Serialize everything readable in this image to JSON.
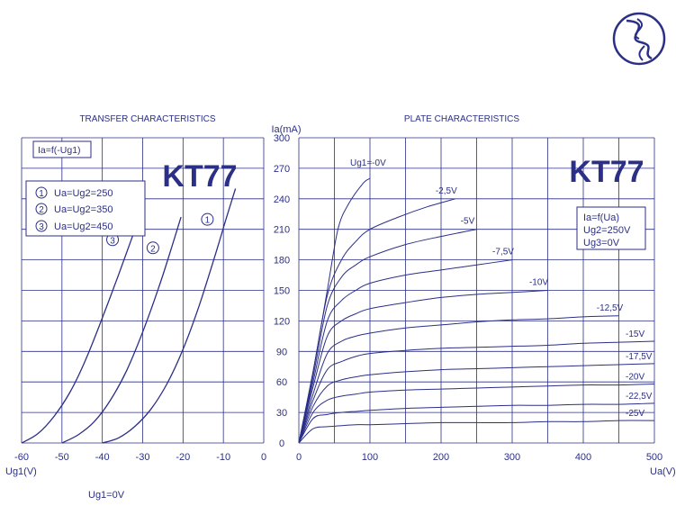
{
  "colors": {
    "ink": "#2b2f86",
    "grid": "#2b2f86",
    "bg": "#ffffff"
  },
  "logo": {
    "icon": "sine-wave-circle-logo"
  },
  "chart_data": [
    {
      "type": "line",
      "title": "TRANSFER  CHARACTERISTICS",
      "xlabel": "Ug1(V)",
      "bottom_note": "Ug1=0V",
      "xlim": [
        -60,
        0
      ],
      "ylim": [
        0,
        300
      ],
      "xticks": [
        "-60",
        "-50",
        "-40",
        "-30",
        "-20",
        "-10",
        "0"
      ],
      "grid": true,
      "heading": "KT77",
      "formula": "Ia=f(-Ug1)",
      "legend": [
        {
          "num": "1",
          "text": "Ua=Ug2=250"
        },
        {
          "num": "2",
          "text": "Ua=Ug2=350"
        },
        {
          "num": "3",
          "text": "Ua=Ug2=450"
        }
      ],
      "series": [
        {
          "marker": "1",
          "x": [
            -40,
            -36,
            -32,
            -28,
            -24,
            -20,
            -16,
            -12,
            -9.5,
            -7
          ],
          "y": [
            0,
            5,
            16,
            33,
            58,
            92,
            135,
            185,
            218,
            250
          ]
        },
        {
          "marker": "2",
          "x": [
            -50,
            -46,
            -42,
            -38,
            -34,
            -30,
            -26,
            -23,
            -20.5
          ],
          "y": [
            0,
            8,
            21,
            42,
            71,
            109,
            153,
            190,
            222
          ]
        },
        {
          "marker": "3",
          "x": [
            -60,
            -56,
            -52,
            -48,
            -44,
            -40,
            -36,
            -33,
            -30.5
          ],
          "y": [
            0,
            9,
            26,
            50,
            83,
            123,
            165,
            198,
            225
          ]
        }
      ]
    },
    {
      "type": "line",
      "title": "PLATE CHARACTERISTICS",
      "xlabel": "Ua(V)",
      "ylabel": "Ia(mA)",
      "xlim": [
        0,
        500
      ],
      "ylim": [
        0,
        300
      ],
      "xticks": [
        "0",
        "100",
        "200",
        "300",
        "400",
        "500"
      ],
      "yticks": [
        "0",
        "30",
        "60",
        "90",
        "120",
        "150",
        "180",
        "210",
        "240",
        "270",
        "300"
      ],
      "grid": true,
      "heading": "KT77",
      "conditions": [
        "Ia=f(Ua)",
        "Ug2=250V",
        "Ug3=0V"
      ],
      "series": [
        {
          "name": "Ug1=-0V",
          "x": [
            0,
            20,
            40,
            55,
            70,
            90,
            100
          ],
          "y": [
            0,
            70,
            150,
            210,
            235,
            255,
            260
          ]
        },
        {
          "name": "-2,5V",
          "x": [
            0,
            20,
            40,
            60,
            80,
            100,
            140,
            180,
            220
          ],
          "y": [
            0,
            70,
            145,
            180,
            198,
            210,
            222,
            232,
            240
          ]
        },
        {
          "name": "-5V",
          "x": [
            0,
            20,
            40,
            60,
            80,
            100,
            150,
            200,
            250
          ],
          "y": [
            0,
            65,
            135,
            163,
            175,
            183,
            195,
            203,
            210
          ]
        },
        {
          "name": "-7,5V",
          "x": [
            0,
            20,
            40,
            60,
            80,
            100,
            150,
            200,
            250,
            300
          ],
          "y": [
            0,
            60,
            120,
            140,
            150,
            157,
            165,
            170,
            175,
            180
          ]
        },
        {
          "name": "-10V",
          "x": [
            0,
            20,
            40,
            60,
            80,
            100,
            150,
            200,
            250,
            300,
            350
          ],
          "y": [
            0,
            55,
            105,
            120,
            127,
            132,
            138,
            143,
            146,
            148,
            150
          ]
        },
        {
          "name": "-12,5V",
          "x": [
            0,
            20,
            40,
            60,
            80,
            100,
            150,
            200,
            250,
            300,
            350,
            400,
            450
          ],
          "y": [
            0,
            48,
            88,
            100,
            105,
            108,
            113,
            116,
            119,
            121,
            122,
            124,
            125
          ]
        },
        {
          "name": "-15V",
          "x": [
            0,
            20,
            40,
            60,
            80,
            100,
            150,
            200,
            250,
            300,
            350,
            400,
            450,
            500
          ],
          "y": [
            0,
            42,
            72,
            80,
            85,
            88,
            91,
            93,
            94,
            95,
            96,
            98,
            99,
            100
          ]
        },
        {
          "name": "-17,5V",
          "x": [
            0,
            20,
            40,
            60,
            80,
            100,
            150,
            200,
            250,
            300,
            350,
            400,
            450,
            500
          ],
          "y": [
            0,
            36,
            56,
            62,
            65,
            67,
            70,
            72,
            73,
            74,
            75,
            76,
            77,
            78
          ]
        },
        {
          "name": "-20V",
          "x": [
            0,
            20,
            40,
            60,
            80,
            100,
            150,
            200,
            250,
            300,
            350,
            400,
            450,
            500
          ],
          "y": [
            0,
            30,
            42,
            46,
            48,
            50,
            52,
            53,
            54,
            55,
            56,
            57,
            57,
            58
          ]
        },
        {
          "name": "-22,5V",
          "x": [
            0,
            20,
            40,
            60,
            80,
            100,
            150,
            200,
            250,
            300,
            350,
            400,
            450,
            500
          ],
          "y": [
            0,
            24,
            28,
            30,
            31,
            32,
            34,
            35,
            36,
            37,
            37,
            38,
            38,
            39
          ]
        },
        {
          "name": "-25V",
          "x": [
            0,
            20,
            40,
            60,
            80,
            100,
            150,
            200,
            250,
            300,
            350,
            400,
            450,
            500
          ],
          "y": [
            0,
            14,
            16,
            17,
            18,
            18,
            19,
            20,
            20,
            20,
            21,
            21,
            22,
            22
          ]
        }
      ]
    }
  ]
}
